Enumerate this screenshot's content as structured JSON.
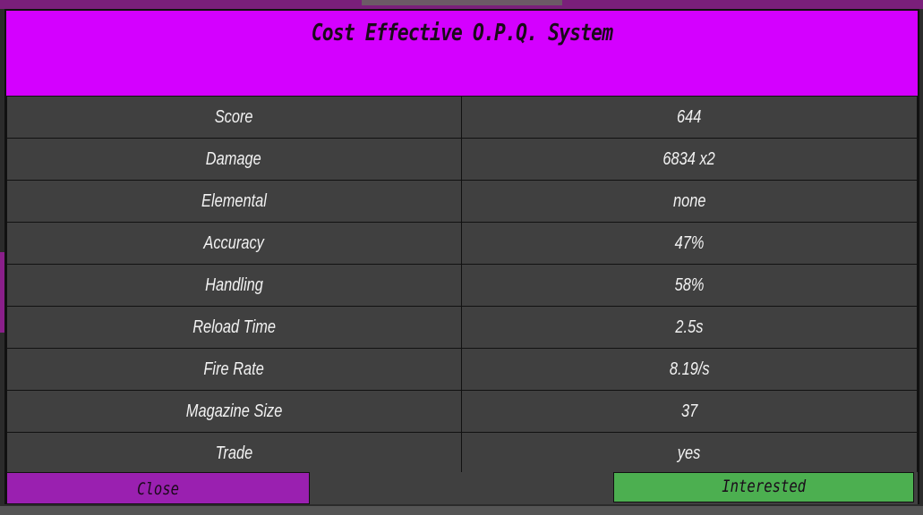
{
  "modal": {
    "title": "Cost Effective O.P.Q. System",
    "colors": {
      "header": "#d400ff",
      "body": "#404040",
      "close_button": "#9a20b0",
      "interested_button": "#4caf50"
    }
  },
  "stats": [
    {
      "label": "Score",
      "value": "644"
    },
    {
      "label": "Damage",
      "value": "6834 x2"
    },
    {
      "label": "Elemental",
      "value": "none"
    },
    {
      "label": "Accuracy",
      "value": "47%"
    },
    {
      "label": "Handling",
      "value": "58%"
    },
    {
      "label": "Reload Time",
      "value": "2.5s"
    },
    {
      "label": "Fire Rate",
      "value": "8.19/s"
    },
    {
      "label": "Magazine Size",
      "value": "37"
    },
    {
      "label": "Trade",
      "value": "yes"
    }
  ],
  "footer": {
    "close_label": "Close",
    "interested_label": "Interested"
  }
}
